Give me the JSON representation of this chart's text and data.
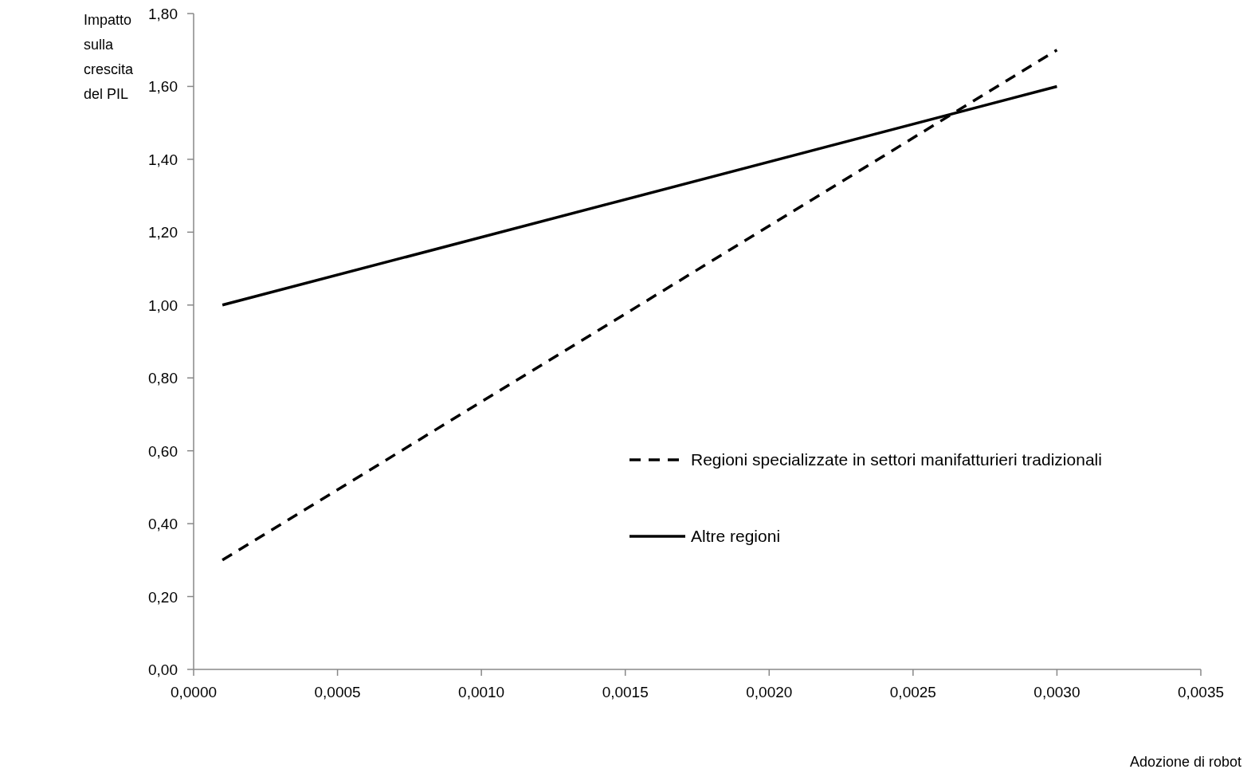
{
  "chart_data": {
    "type": "line",
    "xlabel": "Adozione di robot",
    "ylabel": "Impatto sulla crescita del PIL",
    "xlim": [
      0,
      0.0035
    ],
    "xticks": [
      {
        "value": 0,
        "label": "0,0000"
      },
      {
        "value": 0.0005,
        "label": "0,0005"
      },
      {
        "value": 0.001,
        "label": "0,0010"
      },
      {
        "value": 0.0015,
        "label": "0,0015"
      },
      {
        "value": 0.002,
        "label": "0,0020"
      },
      {
        "value": 0.0025,
        "label": "0,0025"
      },
      {
        "value": 0.003,
        "label": "0,0030"
      },
      {
        "value": 0.0035,
        "label": "0,0035"
      }
    ],
    "ylim": [
      0,
      1.8
    ],
    "yticks": [
      {
        "value": 0,
        "label": "0,00"
      },
      {
        "value": 0.2,
        "label": "0,20"
      },
      {
        "value": 0.4,
        "label": "0,40"
      },
      {
        "value": 0.6,
        "label": "0,60"
      },
      {
        "value": 0.8,
        "label": "0,80"
      },
      {
        "value": 1,
        "label": "1,00"
      },
      {
        "value": 1.2,
        "label": "1,20"
      },
      {
        "value": 1.4,
        "label": "1,40"
      },
      {
        "value": 1.6,
        "label": "1,60"
      },
      {
        "value": 1.8,
        "label": "1,80"
      }
    ],
    "x": [
      0.0001,
      0.003
    ],
    "series": [
      {
        "name": "Regioni specializzate in settori manifatturieri tradizionali",
        "color": "#000000",
        "values": [
          0.3,
          1.7
        ],
        "line_style": "dashed"
      },
      {
        "name": "Altre regioni",
        "color": "#000000",
        "values": [
          1.0,
          1.6
        ],
        "line_style": "solid"
      }
    ],
    "legend": "right",
    "grid": false,
    "marker": "none"
  }
}
